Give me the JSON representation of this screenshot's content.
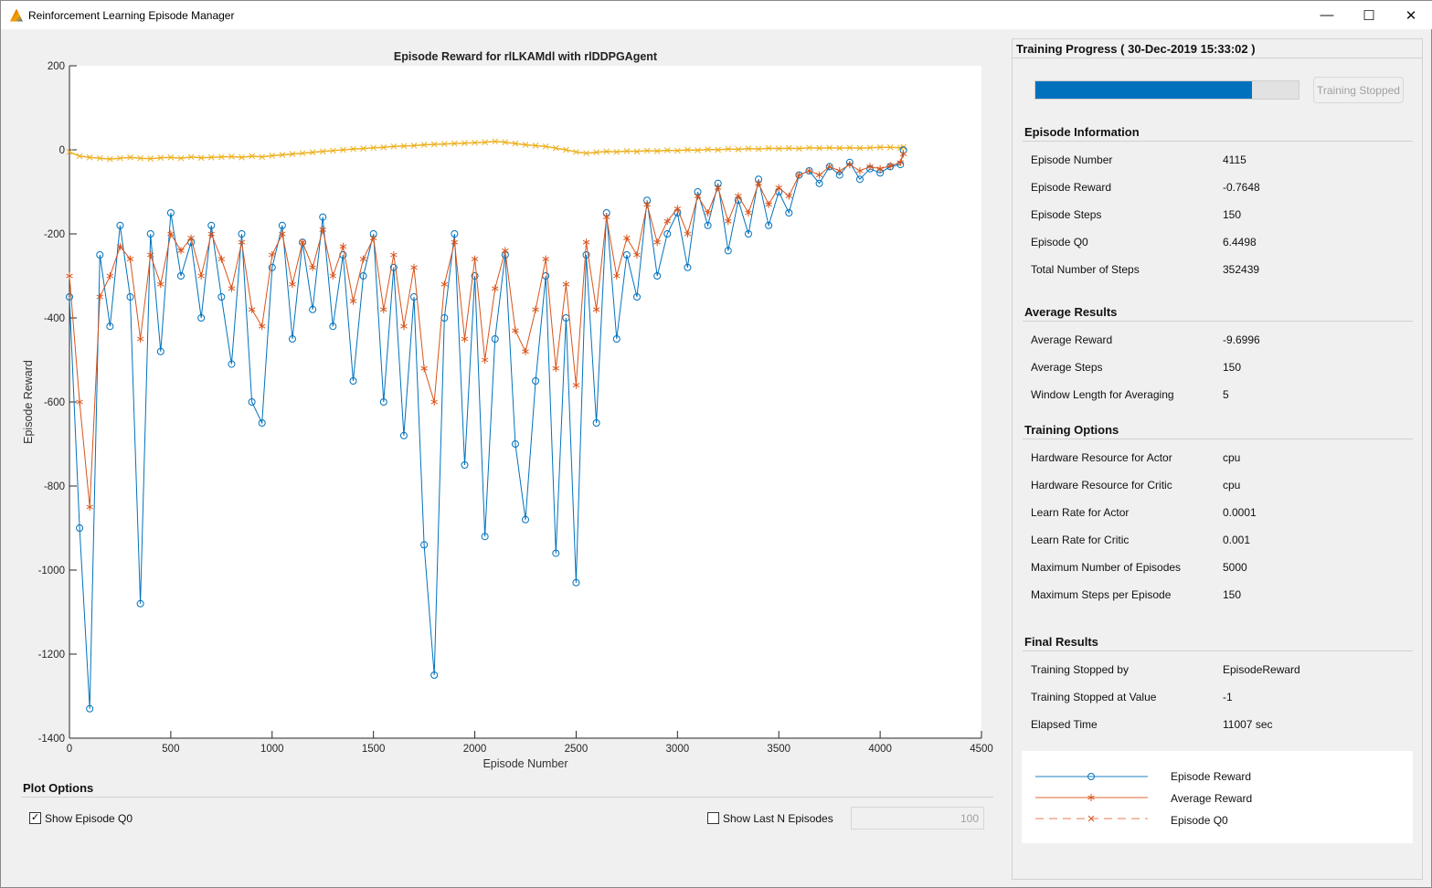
{
  "window": {
    "title": "Reinforcement Learning Episode Manager",
    "minimize": "—",
    "maximize": "☐",
    "close": "✕"
  },
  "progress": {
    "header": "Training Progress ( 30-Dec-2019 15:33:02 )",
    "fraction": 0.823,
    "button": "Training Stopped"
  },
  "episode_info": {
    "title": "Episode Information",
    "rows": [
      {
        "label": "Episode Number",
        "value": "4115"
      },
      {
        "label": "Episode Reward",
        "value": "-0.7648"
      },
      {
        "label": "Episode Steps",
        "value": "150"
      },
      {
        "label": "Episode Q0",
        "value": "6.4498"
      },
      {
        "label": "Total Number of Steps",
        "value": "352439"
      }
    ]
  },
  "average_results": {
    "title": "Average Results",
    "rows": [
      {
        "label": "Average Reward",
        "value": "-9.6996"
      },
      {
        "label": "Average Steps",
        "value": "150"
      },
      {
        "label": "Window Length for Averaging",
        "value": "5"
      }
    ]
  },
  "training_options": {
    "title": "Training Options",
    "rows": [
      {
        "label": "Hardware Resource for Actor",
        "value": "cpu"
      },
      {
        "label": "Hardware Resource for Critic",
        "value": "cpu"
      },
      {
        "label": "Learn Rate for Actor",
        "value": "0.0001"
      },
      {
        "label": "Learn Rate for Critic",
        "value": "0.001"
      },
      {
        "label": "Maximum Number of Episodes",
        "value": "5000"
      },
      {
        "label": "Maximum Steps per Episode",
        "value": "150"
      }
    ]
  },
  "final_results": {
    "title": "Final Results",
    "rows": [
      {
        "label": "Training Stopped by",
        "value": "EpisodeReward"
      },
      {
        "label": "Training Stopped at Value",
        "value": "-1"
      },
      {
        "label": "Elapsed Time",
        "value": "11007 sec"
      }
    ]
  },
  "legend": {
    "items": [
      "Episode Reward",
      "Average Reward",
      "Episode Q0"
    ]
  },
  "plot_options": {
    "title": "Plot Options",
    "show_q0_label": "Show Episode Q0",
    "show_q0_checked": true,
    "show_last_n_label": "Show Last N Episodes",
    "show_last_n_checked": false,
    "last_n_value": "100"
  },
  "chart_data": {
    "type": "line",
    "title": "Episode Reward for rlLKAMdl with rlDDPGAgent",
    "xlabel": "Episode Number",
    "ylabel": "Episode Reward",
    "xlim": [
      0,
      4500
    ],
    "ylim": [
      -1400,
      200
    ],
    "xticks": [
      0,
      500,
      1000,
      1500,
      2000,
      2500,
      3000,
      3500,
      4000,
      4500
    ],
    "yticks": [
      200,
      0,
      -200,
      -400,
      -600,
      -800,
      -1000,
      -1200,
      -1400
    ],
    "colors": {
      "reward": "#0072bd",
      "average": "#d95319",
      "q0": "#edb120"
    },
    "x": [
      0,
      50,
      100,
      150,
      200,
      250,
      300,
      350,
      400,
      450,
      500,
      550,
      600,
      650,
      700,
      750,
      800,
      850,
      900,
      950,
      1000,
      1050,
      1100,
      1150,
      1200,
      1250,
      1300,
      1350,
      1400,
      1450,
      1500,
      1550,
      1600,
      1650,
      1700,
      1750,
      1800,
      1850,
      1900,
      1950,
      2000,
      2050,
      2100,
      2150,
      2200,
      2250,
      2300,
      2350,
      2400,
      2450,
      2500,
      2550,
      2600,
      2650,
      2700,
      2750,
      2800,
      2850,
      2900,
      2950,
      3000,
      3050,
      3100,
      3150,
      3200,
      3250,
      3300,
      3350,
      3400,
      3450,
      3500,
      3550,
      3600,
      3650,
      3700,
      3750,
      3800,
      3850,
      3900,
      3950,
      4000,
      4050,
      4100,
      4115
    ],
    "series": [
      {
        "name": "Episode Reward",
        "values": [
          -350,
          -900,
          -1330,
          -250,
          -420,
          -180,
          -350,
          -1080,
          -200,
          -480,
          -150,
          -300,
          -220,
          -400,
          -180,
          -350,
          -510,
          -200,
          -600,
          -650,
          -280,
          -180,
          -450,
          -220,
          -380,
          -160,
          -420,
          -250,
          -550,
          -300,
          -200,
          -600,
          -280,
          -680,
          -350,
          -940,
          -1250,
          -400,
          -200,
          -750,
          -300,
          -920,
          -450,
          -250,
          -700,
          -880,
          -550,
          -300,
          -960,
          -400,
          -1030,
          -250,
          -650,
          -150,
          -450,
          -250,
          -350,
          -120,
          -300,
          -200,
          -150,
          -280,
          -100,
          -180,
          -80,
          -240,
          -120,
          -200,
          -70,
          -180,
          -100,
          -150,
          -60,
          -50,
          -80,
          -40,
          -60,
          -30,
          -70,
          -45,
          -55,
          -40,
          -35,
          -0.76
        ]
      },
      {
        "name": "Average Reward",
        "values": [
          -300,
          -600,
          -850,
          -350,
          -300,
          -230,
          -260,
          -450,
          -250,
          -320,
          -200,
          -240,
          -210,
          -300,
          -200,
          -260,
          -330,
          -220,
          -380,
          -420,
          -250,
          -200,
          -320,
          -220,
          -280,
          -190,
          -300,
          -230,
          -360,
          -260,
          -210,
          -380,
          -250,
          -420,
          -280,
          -520,
          -600,
          -320,
          -220,
          -450,
          -260,
          -500,
          -330,
          -240,
          -430,
          -480,
          -380,
          -260,
          -520,
          -320,
          -560,
          -220,
          -380,
          -160,
          -300,
          -210,
          -250,
          -130,
          -220,
          -170,
          -140,
          -200,
          -110,
          -150,
          -90,
          -170,
          -110,
          -150,
          -80,
          -130,
          -90,
          -110,
          -60,
          -50,
          -60,
          -40,
          -50,
          -35,
          -50,
          -40,
          -45,
          -38,
          -30,
          -9.7
        ]
      },
      {
        "name": "Episode Q0",
        "values": [
          -5,
          -15,
          -18,
          -20,
          -22,
          -20,
          -18,
          -20,
          -21,
          -19,
          -18,
          -20,
          -17,
          -19,
          -18,
          -17,
          -16,
          -18,
          -15,
          -17,
          -14,
          -12,
          -10,
          -8,
          -6,
          -4,
          -2,
          0,
          2,
          3,
          5,
          6,
          8,
          9,
          10,
          12,
          13,
          14,
          15,
          16,
          17,
          18,
          20,
          18,
          15,
          12,
          10,
          8,
          4,
          0,
          -5,
          -8,
          -6,
          -4,
          -5,
          -3,
          -4,
          -2,
          -3,
          -1,
          -2,
          0,
          -1,
          1,
          0,
          2,
          1,
          3,
          2,
          4,
          3,
          4,
          3,
          5,
          4,
          5,
          4,
          5,
          4,
          5,
          6,
          6,
          5,
          6.45
        ]
      }
    ]
  }
}
